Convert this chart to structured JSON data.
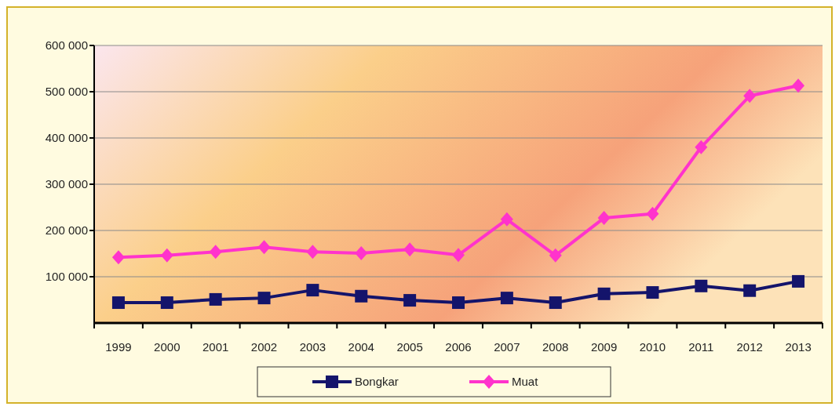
{
  "chart_data": {
    "type": "line",
    "categories": [
      "1999",
      "2000",
      "2001",
      "2002",
      "2003",
      "2004",
      "2005",
      "2006",
      "2007",
      "2008",
      "2009",
      "2010",
      "2011",
      "2012",
      "2013"
    ],
    "ylim": [
      0,
      600000
    ],
    "yticks": [
      {
        "value": 100000,
        "label": "100 000"
      },
      {
        "value": 200000,
        "label": "200 000"
      },
      {
        "value": 300000,
        "label": "300 000"
      },
      {
        "value": 400000,
        "label": "400 000"
      },
      {
        "value": 500000,
        "label": "500 000"
      },
      {
        "value": 600000,
        "label": "600 000"
      }
    ],
    "grid": "y",
    "legend": "bottom",
    "series": [
      {
        "name": "Bongkar",
        "color": "#14146b",
        "marker": "square",
        "values": [
          44000,
          44000,
          51000,
          54000,
          71000,
          58000,
          49000,
          44000,
          54000,
          44000,
          63000,
          66000,
          80000,
          70000,
          90000
        ]
      },
      {
        "name": "Muat",
        "color": "#ff33cc",
        "marker": "diamond",
        "values": [
          142000,
          146000,
          154000,
          164000,
          154000,
          151000,
          159000,
          147000,
          224000,
          146000,
          227000,
          236000,
          380000,
          491000,
          513000
        ]
      }
    ]
  }
}
